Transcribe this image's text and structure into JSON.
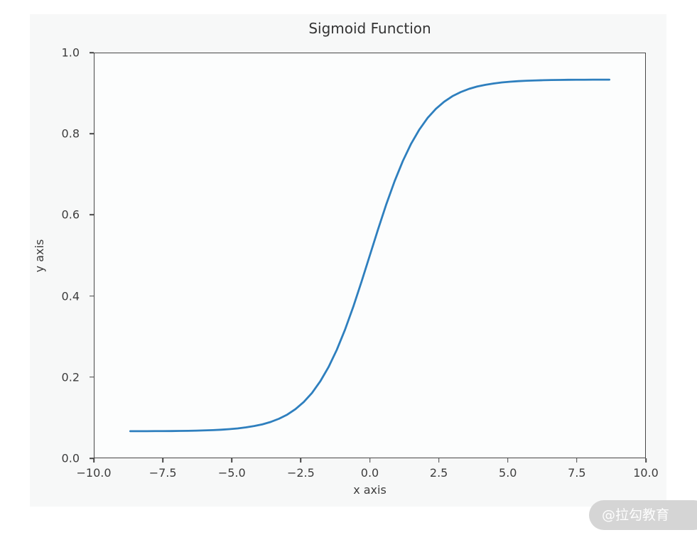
{
  "figure": {
    "background": "#f7f8f8",
    "plot_background": "#fcfdfd",
    "spine_color": "#474747",
    "text_color": "#3d3d3d"
  },
  "watermark": {
    "label": "@拉勾教育",
    "background": "#d5d5d5",
    "text_color": "#fdfdfd"
  },
  "chart_data": {
    "type": "line",
    "title": "Sigmoid Function",
    "xlabel": "x axis",
    "ylabel": "y axis",
    "xlim": [
      -10,
      10
    ],
    "ylim": [
      0,
      1
    ],
    "grid": false,
    "legend_position": "none",
    "x_ticks": [
      {
        "label": "−10.0",
        "value": -10
      },
      {
        "label": "−7.5",
        "value": -7.5
      },
      {
        "label": "−5.0",
        "value": -5
      },
      {
        "label": "−2.5",
        "value": -2.5
      },
      {
        "label": "0.0",
        "value": 0
      },
      {
        "label": "2.5",
        "value": 2.5
      },
      {
        "label": "5.0",
        "value": 5
      },
      {
        "label": "7.5",
        "value": 7.5
      },
      {
        "label": "10.0",
        "value": 10
      }
    ],
    "y_ticks": [
      {
        "label": "0.0",
        "value": 0
      },
      {
        "label": "0.2",
        "value": 0.2
      },
      {
        "label": "0.4",
        "value": 0.4
      },
      {
        "label": "0.6",
        "value": 0.6
      },
      {
        "label": "0.8",
        "value": 0.8
      },
      {
        "label": "1.0",
        "value": 1.0
      }
    ],
    "series": [
      {
        "name": "sigmoid curve",
        "color": "#2e7fbe",
        "line_width": 2.8,
        "x": [
          -8.7,
          -8.4,
          -8.1,
          -7.8,
          -7.5,
          -7.2,
          -6.9,
          -6.6,
          -6.3,
          -6.0,
          -5.7,
          -5.4,
          -5.1,
          -4.8,
          -4.5,
          -4.2,
          -3.9,
          -3.6,
          -3.3,
          -3.0,
          -2.7,
          -2.4,
          -2.1,
          -1.8,
          -1.5,
          -1.2,
          -0.9,
          -0.6,
          -0.3,
          0.0,
          0.3,
          0.6,
          0.9,
          1.2,
          1.5,
          1.8,
          2.1,
          2.4,
          2.7,
          3.0,
          3.3,
          3.6,
          3.9,
          4.2,
          4.5,
          4.8,
          5.1,
          5.4,
          5.7,
          6.0,
          6.3,
          6.6,
          6.9,
          7.2,
          7.5,
          7.8,
          8.1,
          8.4,
          8.7
        ],
        "y": [
          0.0652,
          0.0652,
          0.0653,
          0.0654,
          0.0655,
          0.0656,
          0.0659,
          0.0662,
          0.0666,
          0.0672,
          0.0679,
          0.0689,
          0.0703,
          0.0721,
          0.0746,
          0.0779,
          0.0822,
          0.0881,
          0.096,
          0.1062,
          0.1198,
          0.1374,
          0.1599,
          0.1885,
          0.2237,
          0.2664,
          0.3165,
          0.3732,
          0.4353,
          0.5,
          0.5647,
          0.6268,
          0.6835,
          0.7336,
          0.7763,
          0.8115,
          0.8401,
          0.8626,
          0.8802,
          0.8938,
          0.904,
          0.9119,
          0.9178,
          0.9221,
          0.9254,
          0.9279,
          0.9297,
          0.9311,
          0.9321,
          0.9328,
          0.9334,
          0.9338,
          0.9341,
          0.9344,
          0.9345,
          0.9346,
          0.9347,
          0.9348,
          0.9348
        ]
      }
    ]
  }
}
